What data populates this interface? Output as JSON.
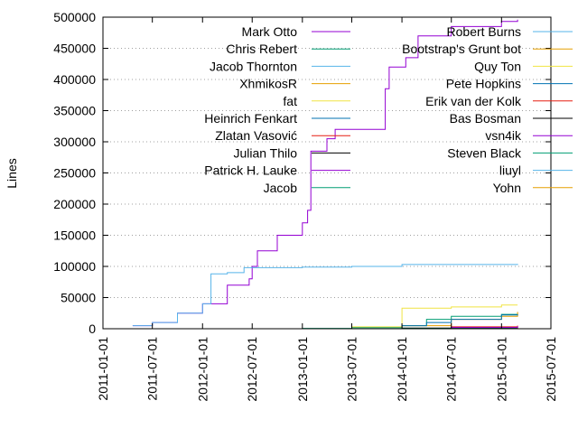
{
  "chart_data": {
    "type": "line",
    "title": "",
    "xlabel": "",
    "ylabel": "Lines",
    "ylim": [
      0,
      500000
    ],
    "xlim": [
      "2011-01-01",
      "2015-07-01"
    ],
    "grid": "horizontal dotted",
    "legend": "two columns inside plot, top",
    "y_ticks": [
      "0",
      "50000",
      "100000",
      "150000",
      "200000",
      "250000",
      "300000",
      "350000",
      "400000",
      "450000",
      "500000"
    ],
    "x_ticks": [
      "2011-01-01",
      "2011-07-01",
      "2012-01-01",
      "2012-07-01",
      "2013-01-01",
      "2013-07-01",
      "2014-01-01",
      "2014-07-01",
      "2015-01-01",
      "2015-07-01"
    ],
    "series": [
      {
        "name": "Mark Otto",
        "color": "#9400d3",
        "points": [
          [
            "2011-04-20",
            5000
          ],
          [
            "2011-07-01",
            10000
          ],
          [
            "2011-10-01",
            25000
          ],
          [
            "2012-01-01",
            40000
          ],
          [
            "2012-04-01",
            70000
          ],
          [
            "2012-06-20",
            80000
          ],
          [
            "2012-07-01",
            100000
          ],
          [
            "2012-07-20",
            125000
          ],
          [
            "2012-10-01",
            150000
          ],
          [
            "2013-01-01",
            170000
          ],
          [
            "2013-01-20",
            190000
          ],
          [
            "2013-02-01",
            285000
          ],
          [
            "2013-04-01",
            305000
          ],
          [
            "2013-05-01",
            320000
          ],
          [
            "2013-11-01",
            385000
          ],
          [
            "2013-11-15",
            420000
          ],
          [
            "2014-01-15",
            435000
          ],
          [
            "2014-03-01",
            470000
          ],
          [
            "2014-07-01",
            485000
          ],
          [
            "2015-01-01",
            493000
          ],
          [
            "2015-03-01",
            496000
          ]
        ]
      },
      {
        "name": "Chris Rebert",
        "color": "#009e73",
        "points": [
          [
            "2013-01-01",
            500
          ],
          [
            "2013-07-01",
            2000
          ],
          [
            "2014-01-01",
            5000
          ],
          [
            "2014-04-01",
            15000
          ],
          [
            "2014-07-01",
            20000
          ],
          [
            "2015-01-01",
            23000
          ],
          [
            "2015-03-01",
            25000
          ]
        ]
      },
      {
        "name": "Jacob Thornton",
        "color": "#56b4e9",
        "points": [
          [
            "2011-04-20",
            5000
          ],
          [
            "2011-07-01",
            10000
          ],
          [
            "2011-10-01",
            25000
          ],
          [
            "2012-01-01",
            40000
          ],
          [
            "2012-02-01",
            88000
          ],
          [
            "2012-04-01",
            90000
          ],
          [
            "2012-06-01",
            98000
          ],
          [
            "2013-01-01",
            99000
          ],
          [
            "2013-07-01",
            100000
          ],
          [
            "2014-01-01",
            103000
          ],
          [
            "2015-03-01",
            104000
          ]
        ]
      },
      {
        "name": "XhmikosR",
        "color": "#e69f00",
        "points": [
          [
            "2013-07-01",
            0
          ],
          [
            "2014-01-01",
            5000
          ],
          [
            "2014-07-01",
            15000
          ],
          [
            "2015-01-01",
            20000
          ],
          [
            "2015-03-01",
            27000
          ]
        ]
      },
      {
        "name": "fat",
        "color": "#f0e442",
        "points": [
          [
            "2013-07-01",
            3000
          ],
          [
            "2014-01-01",
            33000
          ],
          [
            "2014-07-01",
            35000
          ],
          [
            "2015-01-01",
            38000
          ],
          [
            "2015-03-01",
            38000
          ]
        ]
      },
      {
        "name": "Heinrich Fenkart",
        "color": "#0072b2",
        "points": [
          [
            "2013-09-01",
            0
          ],
          [
            "2014-01-01",
            5000
          ],
          [
            "2014-04-01",
            10000
          ],
          [
            "2014-07-01",
            15000
          ],
          [
            "2015-01-01",
            22000
          ],
          [
            "2015-03-01",
            23000
          ]
        ]
      },
      {
        "name": "Zlatan Vasović",
        "color": "#e51e10",
        "points": [
          [
            "2014-01-01",
            0
          ],
          [
            "2014-07-01",
            3000
          ],
          [
            "2015-03-01",
            5000
          ]
        ]
      },
      {
        "name": "Julian Thilo",
        "color": "#000000",
        "points": [
          [
            "2013-07-01",
            0
          ],
          [
            "2014-01-01",
            1000
          ],
          [
            "2015-03-01",
            2000
          ]
        ]
      },
      {
        "name": "Patrick H. Lauke",
        "color": "#9400d3",
        "points": [
          [
            "2014-01-01",
            0
          ],
          [
            "2014-07-01",
            2000
          ],
          [
            "2015-03-01",
            4000
          ]
        ]
      },
      {
        "name": "Jacob",
        "color": "#009e73",
        "points": [
          [
            "2012-01-01",
            0
          ],
          [
            "2013-01-01",
            500
          ],
          [
            "2015-03-01",
            1000
          ]
        ]
      },
      {
        "name": "Robert Burns",
        "color": "#56b4e9",
        "points": [
          [
            "2013-01-01",
            0
          ],
          [
            "2015-03-01",
            500
          ]
        ]
      },
      {
        "name": "Bootstrap's Grunt bot",
        "color": "#e69f00",
        "points": [
          [
            "2014-04-01",
            0
          ],
          [
            "2015-03-01",
            1000
          ]
        ]
      },
      {
        "name": "Quy Ton",
        "color": "#f0e442",
        "points": [
          [
            "2014-07-01",
            0
          ],
          [
            "2015-03-01",
            300
          ]
        ]
      },
      {
        "name": "Pete Hopkins",
        "color": "#0072b2",
        "points": [
          [
            "2014-07-01",
            0
          ],
          [
            "2015-03-01",
            300
          ]
        ]
      },
      {
        "name": "Erik van der Kolk",
        "color": "#e51e10",
        "points": [
          [
            "2014-07-01",
            0
          ],
          [
            "2015-03-01",
            300
          ]
        ]
      },
      {
        "name": "Bas Bosman",
        "color": "#000000",
        "points": [
          [
            "2014-07-01",
            0
          ],
          [
            "2015-03-01",
            300
          ]
        ]
      },
      {
        "name": "vsn4ik",
        "color": "#9400d3",
        "points": [
          [
            "2014-07-01",
            0
          ],
          [
            "2015-03-01",
            300
          ]
        ]
      },
      {
        "name": "Steven Black",
        "color": "#009e73",
        "points": [
          [
            "2014-07-01",
            0
          ],
          [
            "2015-03-01",
            300
          ]
        ]
      },
      {
        "name": "liuyl",
        "color": "#56b4e9",
        "points": [
          [
            "2014-07-01",
            0
          ],
          [
            "2015-03-01",
            300
          ]
        ]
      },
      {
        "name": "Yohn",
        "color": "#e69f00",
        "points": [
          [
            "2014-07-01",
            0
          ],
          [
            "2015-03-01",
            300
          ]
        ]
      }
    ]
  }
}
